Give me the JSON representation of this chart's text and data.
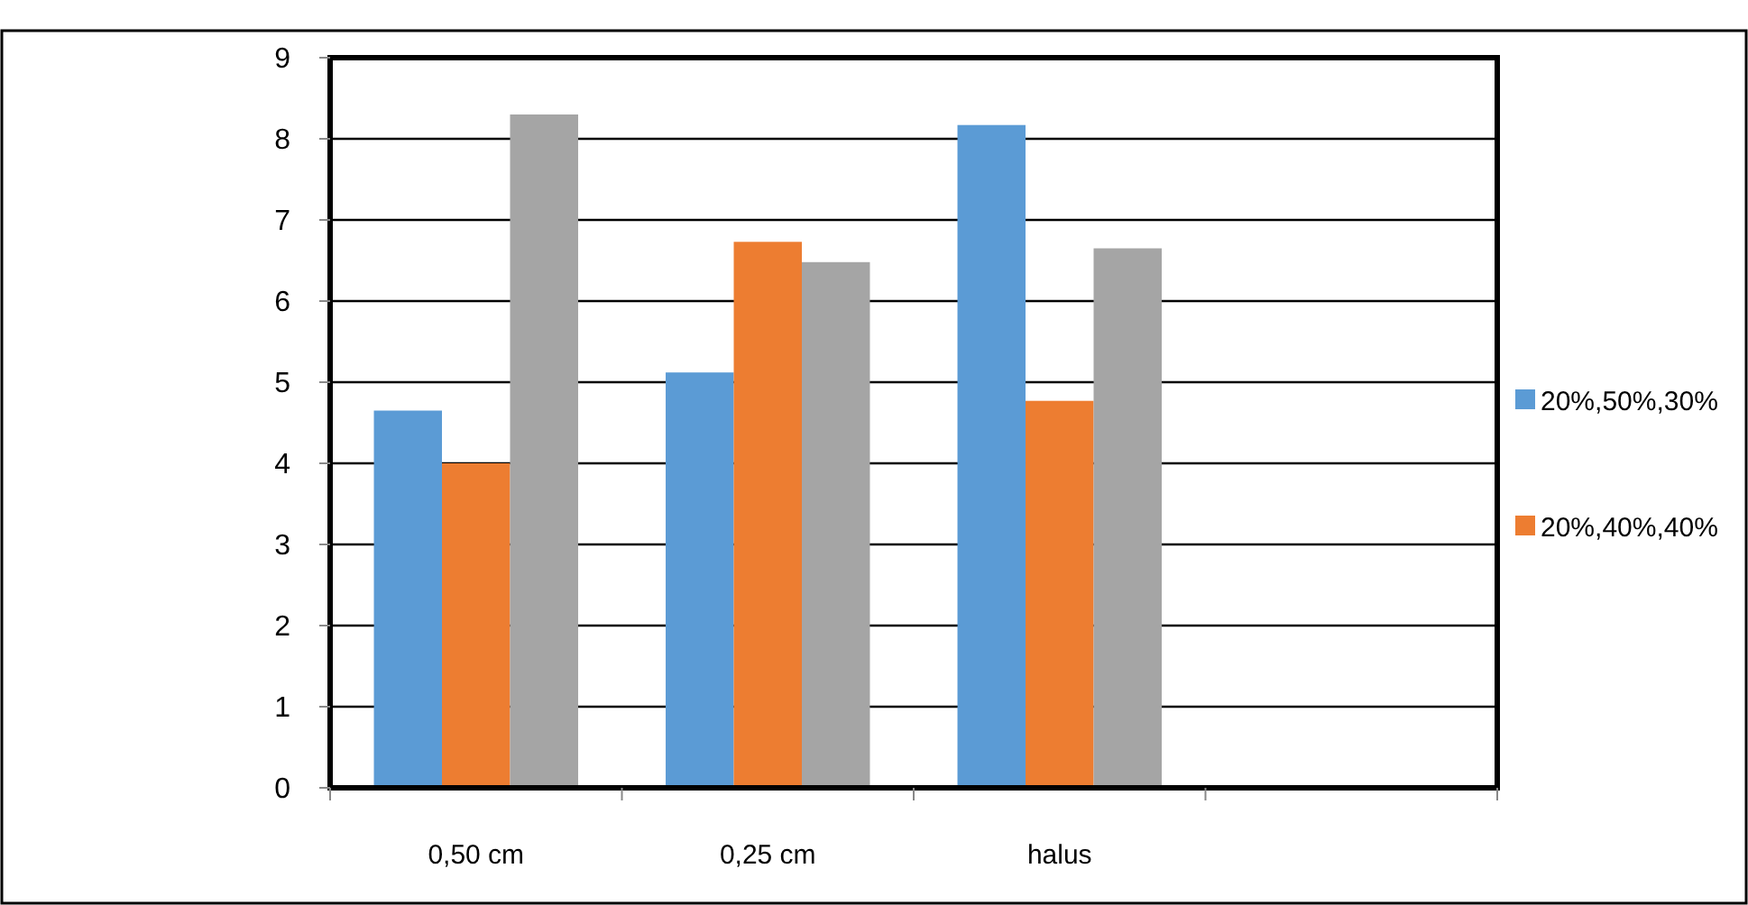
{
  "chart_data": {
    "type": "bar",
    "categories": [
      "0,50 cm",
      "0,25 cm",
      "halus",
      null
    ],
    "series": [
      {
        "name": "20%,50%,30%",
        "color": "#5b9bd5",
        "values": [
          4.65,
          5.12,
          8.17,
          null
        ]
      },
      {
        "name": "20%,40%,40%",
        "color": "#ed7d31",
        "values": [
          4.0,
          6.73,
          4.77,
          null
        ]
      },
      {
        "color": "#a5a5a5",
        "values": [
          8.3,
          6.48,
          6.65,
          null
        ]
      }
    ],
    "ylim": [
      0,
      9
    ],
    "yticks": [
      0,
      1,
      2,
      3,
      4,
      5,
      6,
      7,
      8,
      9
    ],
    "grid": "y",
    "legend": "right"
  }
}
